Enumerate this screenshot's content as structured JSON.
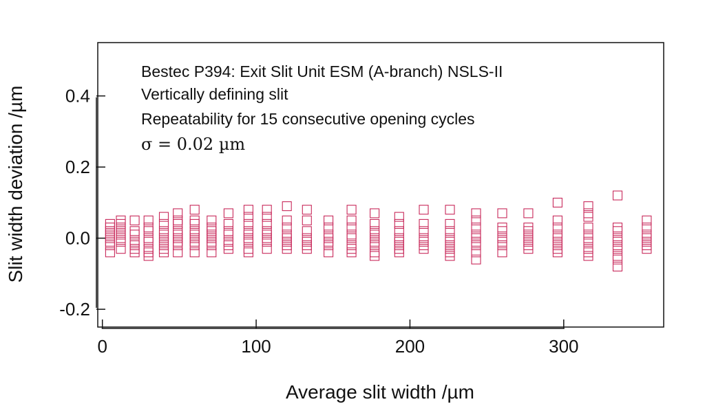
{
  "chart_data": {
    "type": "scatter",
    "xlabel": "Average slit width /µm",
    "ylabel": "Slit width deviation /µm",
    "xlim": [
      -3,
      365
    ],
    "ylim": [
      -0.25,
      0.55
    ],
    "x_ticks": [
      0,
      100,
      200,
      300
    ],
    "x_tick_labels": [
      "0",
      "100",
      "200",
      "300"
    ],
    "y_ticks": [
      -0.2,
      0.0,
      0.2,
      0.4
    ],
    "y_tick_labels": [
      "-0.2",
      "0.0",
      "0.2",
      "0.4"
    ],
    "grid": false,
    "marker": "open-square",
    "marker_color": "#c8285a",
    "annotations": [
      "Bestec P394: Exit Slit Unit ESM (A-branch) NSLS-II",
      "Vertically defining slit",
      "Repeatability for 15 consecutive opening cycles",
      "σ = 0.02 µm"
    ],
    "points": [
      {
        "x": 5,
        "y": [
          0.04,
          0.03,
          0.02,
          0.01,
          0.0,
          -0.01,
          -0.02,
          -0.04
        ]
      },
      {
        "x": 12,
        "y": [
          0.05,
          0.04,
          0.03,
          0.02,
          0.01,
          0.0,
          -0.01,
          -0.03
        ]
      },
      {
        "x": 21,
        "y": [
          0.05,
          0.02,
          0.01,
          -0.01,
          -0.02,
          -0.03,
          -0.04
        ]
      },
      {
        "x": 30,
        "y": [
          0.05,
          0.03,
          0.02,
          0.0,
          -0.01,
          -0.03,
          -0.04,
          -0.05
        ]
      },
      {
        "x": 40,
        "y": [
          0.06,
          0.04,
          0.02,
          0.01,
          0.0,
          -0.01,
          -0.02,
          -0.03,
          -0.04
        ]
      },
      {
        "x": 49,
        "y": [
          0.07,
          0.05,
          0.04,
          0.02,
          0.01,
          0.0,
          -0.01,
          -0.02,
          -0.04
        ]
      },
      {
        "x": 60,
        "y": [
          0.08,
          0.05,
          0.04,
          0.02,
          0.01,
          0.0,
          -0.01,
          -0.02,
          -0.04
        ]
      },
      {
        "x": 71,
        "y": [
          0.05,
          0.03,
          0.02,
          0.01,
          0.0,
          -0.01,
          -0.02,
          -0.04
        ]
      },
      {
        "x": 82,
        "y": [
          0.07,
          0.04,
          0.02,
          0.01,
          -0.01,
          -0.02,
          -0.03
        ]
      },
      {
        "x": 95,
        "y": [
          0.08,
          0.06,
          0.04,
          0.02,
          0.01,
          0.0,
          -0.01,
          -0.03,
          -0.04
        ]
      },
      {
        "x": 107,
        "y": [
          0.08,
          0.06,
          0.04,
          0.02,
          0.01,
          0.0,
          -0.01,
          -0.03
        ]
      },
      {
        "x": 120,
        "y": [
          0.09,
          0.05,
          0.03,
          0.01,
          0.0,
          -0.01,
          -0.02,
          -0.03
        ]
      },
      {
        "x": 133,
        "y": [
          0.08,
          0.05,
          0.02,
          0.0,
          -0.01,
          -0.02,
          -0.03
        ]
      },
      {
        "x": 147,
        "y": [
          0.05,
          0.03,
          0.01,
          0.0,
          -0.01,
          -0.02,
          -0.04
        ]
      },
      {
        "x": 162,
        "y": [
          0.08,
          0.05,
          0.03,
          0.01,
          0.0,
          -0.02,
          -0.03,
          -0.04
        ]
      },
      {
        "x": 177,
        "y": [
          0.07,
          0.04,
          0.02,
          0.01,
          0.0,
          -0.01,
          -0.02,
          -0.04,
          -0.05
        ]
      },
      {
        "x": 193,
        "y": [
          0.06,
          0.04,
          0.02,
          0.0,
          -0.01,
          -0.02,
          -0.03,
          -0.04
        ]
      },
      {
        "x": 209,
        "y": [
          0.08,
          0.04,
          0.02,
          0.0,
          -0.01,
          -0.02,
          -0.03
        ]
      },
      {
        "x": 226,
        "y": [
          0.08,
          0.04,
          0.02,
          0.0,
          -0.01,
          -0.02,
          -0.03,
          -0.04,
          -0.05
        ]
      },
      {
        "x": 243,
        "y": [
          0.07,
          0.05,
          0.03,
          0.01,
          0.0,
          -0.01,
          -0.02,
          -0.04,
          -0.06
        ]
      },
      {
        "x": 260,
        "y": [
          0.07,
          0.03,
          0.02,
          0.0,
          -0.01,
          -0.02,
          -0.04
        ]
      },
      {
        "x": 277,
        "y": [
          0.07,
          0.03,
          0.02,
          0.01,
          0.0,
          -0.01,
          -0.02,
          -0.03
        ]
      },
      {
        "x": 296,
        "y": [
          0.1,
          0.05,
          0.03,
          0.01,
          0.0,
          -0.01,
          -0.02,
          -0.03,
          -0.04
        ]
      },
      {
        "x": 316,
        "y": [
          0.09,
          0.07,
          0.06,
          0.03,
          0.01,
          0.0,
          -0.01,
          -0.03,
          -0.04,
          -0.05
        ]
      },
      {
        "x": 335,
        "y": [
          0.12,
          0.03,
          0.02,
          0.0,
          -0.01,
          -0.02,
          -0.03,
          -0.05,
          -0.06,
          -0.08
        ]
      },
      {
        "x": 354,
        "y": [
          0.05,
          0.03,
          0.01,
          0.0,
          -0.01,
          -0.02,
          -0.03
        ]
      }
    ]
  }
}
